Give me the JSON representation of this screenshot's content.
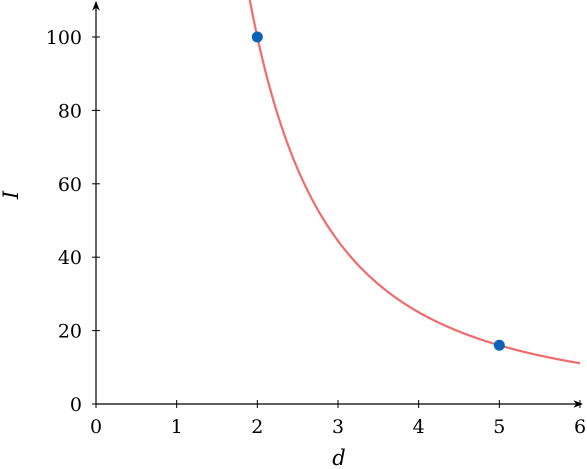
{
  "chart_data": {
    "type": "line",
    "title": "",
    "xlabel": "d",
    "ylabel": "I",
    "xlim": [
      0,
      6
    ],
    "ylim": [
      0,
      110
    ],
    "x_ticks": [
      "0",
      "1",
      "2",
      "3",
      "4",
      "5",
      "6"
    ],
    "y_ticks": [
      "0",
      "20",
      "40",
      "60",
      "80",
      "100"
    ],
    "grid": false,
    "legend": "none",
    "curve": {
      "equation": "I = 400 / d^2",
      "color": "#f26b6b"
    },
    "points": [
      {
        "x": 2,
        "y": 100
      },
      {
        "x": 5,
        "y": 16
      }
    ],
    "point_color": "#0b63b9",
    "axis_color": "#000000"
  }
}
